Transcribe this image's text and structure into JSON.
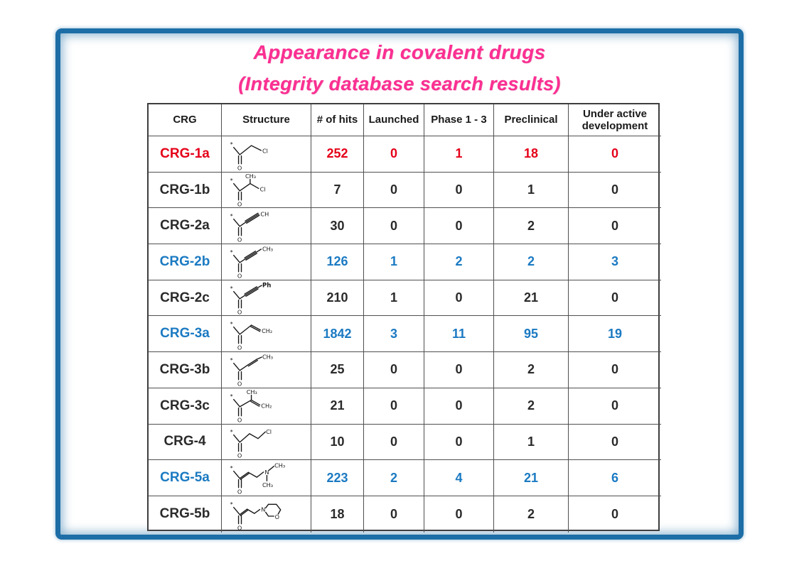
{
  "slide": {
    "title_line1": "Appearance in covalent drugs",
    "title_line2": "(Integrity database search results)"
  },
  "colors": {
    "title_pink": "#fb2f92",
    "frame_blue": "#1d6ea6",
    "highlight_red": "#e50019",
    "highlight_blue": "#1b7ac2",
    "text_black": "#2a2a2a",
    "grid_line": "#4f4f4f"
  },
  "table": {
    "headers": [
      "CRG",
      "Structure",
      "# of hits",
      "Launched",
      "Phase 1 - 3",
      "Preclinical",
      "Under active development"
    ],
    "value_names": [
      "hits",
      "launched",
      "phase-1-3",
      "preclinical",
      "under-active-development"
    ],
    "rows": [
      {
        "crg": "CRG-1a",
        "color": "red",
        "structure": "chloroacetyl *-C(=O)-CH2-Cl",
        "structure_icon": "struct-crg-1a",
        "values": [
          "252",
          "0",
          "1",
          "18",
          "0"
        ]
      },
      {
        "crg": "CRG-1b",
        "color": "black",
        "structure": "2-chloropropanoyl *-C(=O)-CH(CH3)-Cl",
        "structure_icon": "struct-crg-1b",
        "values": [
          "7",
          "0",
          "0",
          "1",
          "0"
        ]
      },
      {
        "crg": "CRG-2a",
        "color": "black",
        "structure": "propioloyl *-C(=O)-C#CH",
        "structure_icon": "struct-crg-2a",
        "values": [
          "30",
          "0",
          "0",
          "2",
          "0"
        ]
      },
      {
        "crg": "CRG-2b",
        "color": "blue",
        "structure": "2-butynoyl *-C(=O)-C#C-CH3",
        "structure_icon": "struct-crg-2b",
        "values": [
          "126",
          "1",
          "2",
          "2",
          "3"
        ]
      },
      {
        "crg": "CRG-2c",
        "color": "black",
        "structure": "3-phenylpropioloyl *-C(=O)-C#C-Ph",
        "structure_icon": "struct-crg-2c",
        "values": [
          "210",
          "1",
          "0",
          "21",
          "0"
        ]
      },
      {
        "crg": "CRG-3a",
        "color": "blue",
        "structure": "acryloyl *-C(=O)-CH=CH2",
        "structure_icon": "struct-crg-3a",
        "values": [
          "1842",
          "3",
          "11",
          "95",
          "19"
        ]
      },
      {
        "crg": "CRG-3b",
        "color": "black",
        "structure": "crotonoyl *-C(=O)-CH=CH-CH3",
        "structure_icon": "struct-crg-3b",
        "values": [
          "25",
          "0",
          "0",
          "2",
          "0"
        ]
      },
      {
        "crg": "CRG-3c",
        "color": "black",
        "structure": "methacryloyl *-C(=O)-C(CH3)=CH2",
        "structure_icon": "struct-crg-3c",
        "values": [
          "21",
          "0",
          "0",
          "2",
          "0"
        ]
      },
      {
        "crg": "CRG-4",
        "color": "black",
        "structure": "3-chloropropanoyl *-C(=O)-CH2-CH2-Cl",
        "structure_icon": "struct-crg-4",
        "values": [
          "10",
          "0",
          "0",
          "1",
          "0"
        ]
      },
      {
        "crg": "CRG-5a",
        "color": "blue",
        "structure": "4-dimethylamino-crotonoyl *-C(=O)-CH=CH-CH2-N(CH3)2",
        "structure_icon": "struct-crg-5a",
        "values": [
          "223",
          "2",
          "4",
          "21",
          "6"
        ]
      },
      {
        "crg": "CRG-5b",
        "color": "black",
        "structure": "4-morpholino-crotonoyl *-C(=O)-CH=CH-CH2-morpholine",
        "structure_icon": "struct-crg-5b",
        "values": [
          "18",
          "0",
          "0",
          "2",
          "0"
        ]
      }
    ]
  }
}
